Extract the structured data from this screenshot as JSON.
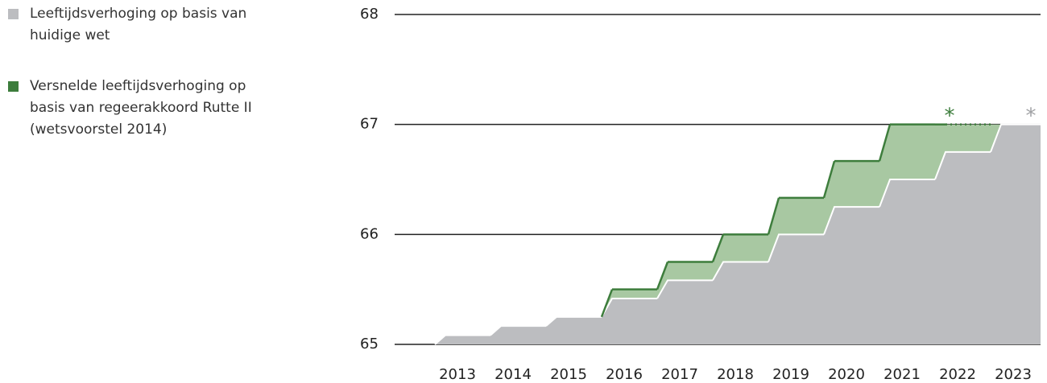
{
  "chart_data": {
    "type": "step-area",
    "categories": [
      "2013",
      "2014",
      "2015",
      "2016",
      "2017",
      "2018",
      "2019",
      "2020",
      "2021",
      "2022",
      "2023"
    ],
    "series": [
      {
        "name": "Leeftijdsverhoging op basis van huidige wet",
        "color": "#bcbdc0",
        "values": [
          65.083,
          65.167,
          65.25,
          65.417,
          65.583,
          65.75,
          66,
          66.25,
          66.5,
          66.75,
          67
        ]
      },
      {
        "name": "Versnelde leeftijdsverhoging op basis van regeerakkoord Rutte II (wetsvoorstel 2014)",
        "color": "#3d7d3c",
        "values": [
          null,
          null,
          null,
          65.5,
          65.75,
          66,
          66.333,
          66.667,
          67,
          67,
          null
        ]
      }
    ],
    "annotations": [
      "*",
      "*"
    ],
    "ylim": [
      65,
      68
    ],
    "yticks": [
      65,
      66,
      67,
      68
    ],
    "grid": true
  }
}
